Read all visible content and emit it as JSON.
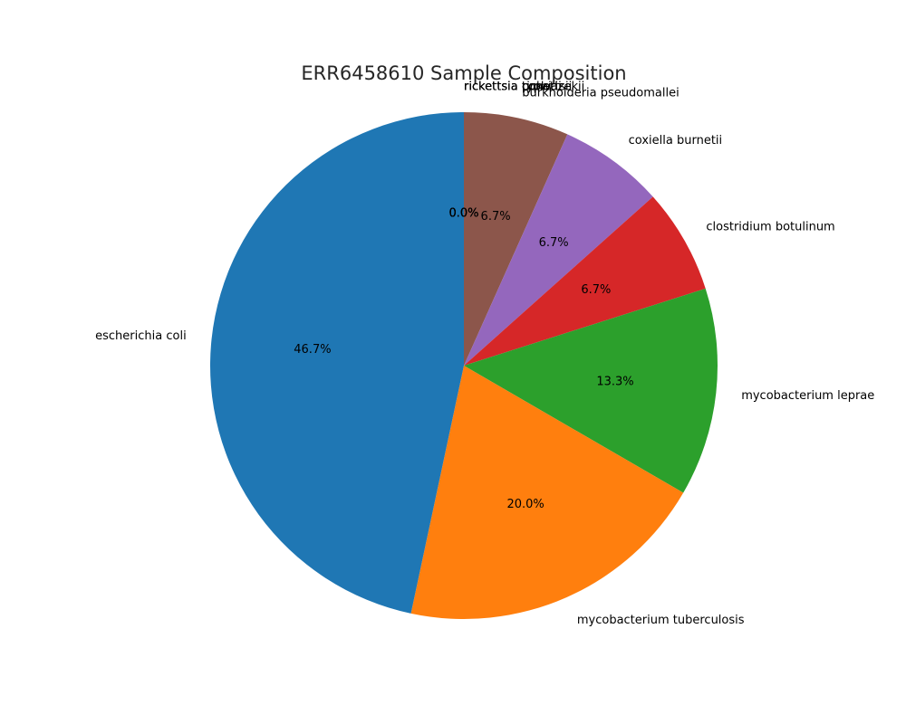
{
  "chart_data": {
    "type": "pie",
    "title": "ERR6458610 Sample Composition",
    "start_angle_deg": 90,
    "direction": "clockwise",
    "slices": [
      {
        "label": "rickettsia prowazekii",
        "value": 0.0,
        "pct_label": "0.0%",
        "color": "#e377c2"
      },
      {
        "label": "rickettsia rickettsii",
        "value": 0.0,
        "pct_label": "0.0%",
        "color": "#7f7f7f"
      },
      {
        "label": "rickettsia conorii",
        "value": 0.0,
        "pct_label": "0.0%",
        "color": "#bcbd22"
      },
      {
        "label": "rickettsia typhi",
        "value": 0.0,
        "pct_label": "0.0%",
        "color": "#17becf"
      },
      {
        "label": "burkholderia pseudomallei",
        "value": 6.7,
        "pct_label": "6.7%",
        "color": "#8c564b"
      },
      {
        "label": "coxiella burnetii",
        "value": 6.7,
        "pct_label": "6.7%",
        "color": "#9467bd"
      },
      {
        "label": "clostridium botulinum",
        "value": 6.7,
        "pct_label": "6.7%",
        "color": "#d62728"
      },
      {
        "label": "mycobacterium leprae",
        "value": 13.3,
        "pct_label": "13.3%",
        "color": "#2ca02c"
      },
      {
        "label": "mycobacterium tuberculosis",
        "value": 20.0,
        "pct_label": "20.0%",
        "color": "#ff7f0e"
      },
      {
        "label": "escherichia coli",
        "value": 46.7,
        "pct_label": "46.7%",
        "color": "#1f77b4"
      }
    ]
  }
}
